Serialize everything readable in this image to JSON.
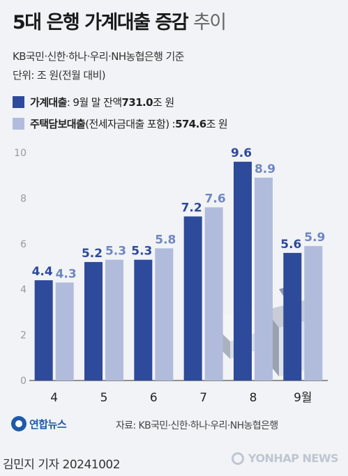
{
  "title_main": "5대 은행 가계대출 증감",
  "title_suffix": "추이",
  "subtitle1": "KB국민·신한·하나·우리·NH농협은행 기준",
  "subtitle2": "단위: 조 원(전월 대비)",
  "legend": [
    {
      "name": "가계대출",
      "text": " : 9월 말 잔액 ",
      "value": "731.0",
      "unit": "조 원",
      "color": "#2e4a9a"
    },
    {
      "name": "주택담보대출",
      "text": "(전세자금대출 포함) : ",
      "value": "574.6",
      "unit": "조 원",
      "color": "#b1bcdd"
    }
  ],
  "chart_data": {
    "type": "bar",
    "categories": [
      "4",
      "5",
      "6",
      "7",
      "8",
      "9월"
    ],
    "series": [
      {
        "name": "가계대출",
        "values": [
          4.4,
          5.2,
          5.3,
          7.2,
          9.6,
          5.6
        ],
        "color": "#2e4a9a",
        "label_color": "#2e4a9a"
      },
      {
        "name": "주택담보대출",
        "values": [
          4.3,
          5.3,
          5.8,
          7.6,
          8.9,
          5.9
        ],
        "color": "#b1bcdd",
        "label_color": "#6f86c2"
      }
    ],
    "yticks": [
      0,
      2,
      4,
      6,
      8,
      10
    ],
    "ylim": [
      0,
      10
    ],
    "grid": false,
    "data_labels": [
      "4.4",
      "4.3",
      "5.2",
      "5.3",
      "5.3",
      "5.8",
      "7.2",
      "7.6",
      "9.6",
      "8.9",
      "5.6",
      "5.9"
    ]
  },
  "source": "자료: KB국민·신한·하나·우리·NH농협은행",
  "logo_text": "연합뉴스",
  "byline": "김민지 기자  20241002",
  "watermark": "YONHAP NEWS"
}
